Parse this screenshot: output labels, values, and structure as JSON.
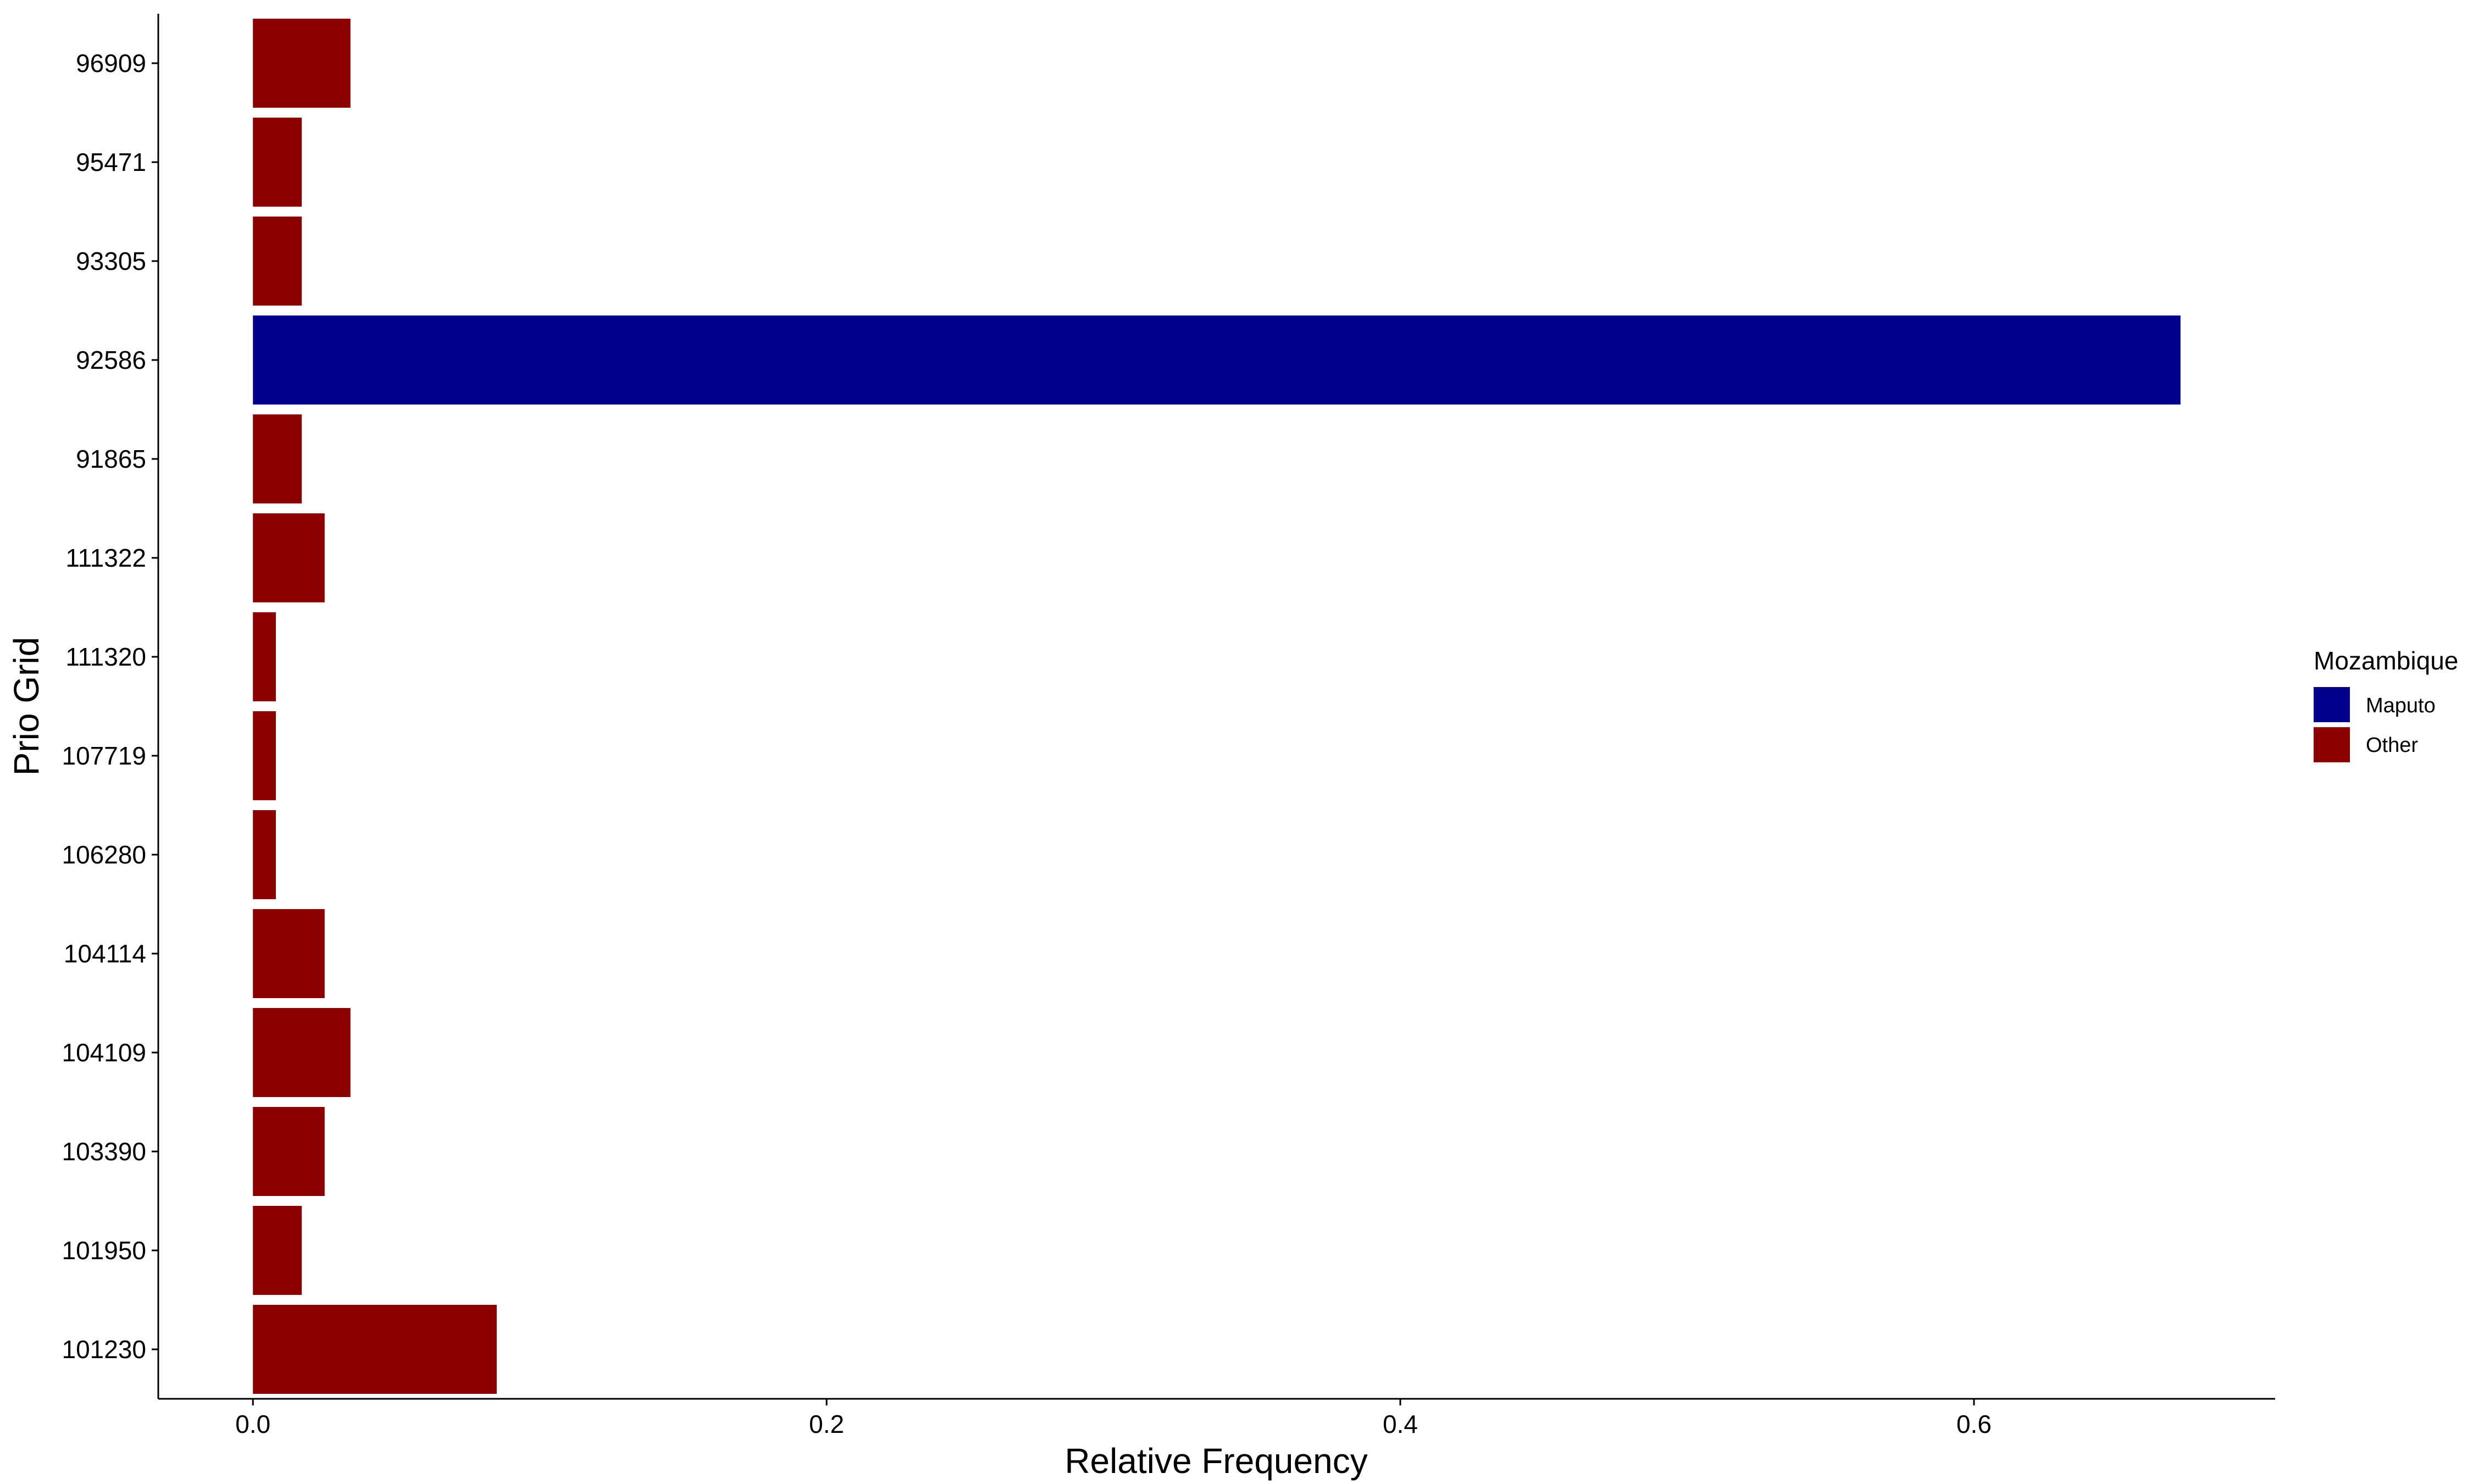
{
  "chart_data": {
    "type": "bar",
    "orientation": "horizontal",
    "xlabel": "Relative Frequency",
    "ylabel": "Prio Grid",
    "xlim": [
      -0.033,
      0.705
    ],
    "xticks": [
      0.0,
      0.2,
      0.4,
      0.6
    ],
    "xtick_labels": [
      "0.0",
      "0.2",
      "0.4",
      "0.6"
    ],
    "categories": [
      "101230",
      "101950",
      "103390",
      "104109",
      "104114",
      "106280",
      "107719",
      "111320",
      "111322",
      "91865",
      "92586",
      "93305",
      "95471",
      "96909"
    ],
    "values": [
      0.085,
      0.017,
      0.025,
      0.034,
      0.025,
      0.008,
      0.008,
      0.008,
      0.025,
      0.017,
      0.672,
      0.017,
      0.017,
      0.034
    ],
    "groups": [
      "Other",
      "Other",
      "Other",
      "Other",
      "Other",
      "Other",
      "Other",
      "Other",
      "Other",
      "Other",
      "Maputo",
      "Other",
      "Other",
      "Other"
    ],
    "legend": {
      "title": "Mozambique",
      "position": "right",
      "items": [
        {
          "label": "Maputo",
          "color": "#00008B"
        },
        {
          "label": "Other",
          "color": "#8B0000"
        }
      ]
    },
    "grid": false
  }
}
